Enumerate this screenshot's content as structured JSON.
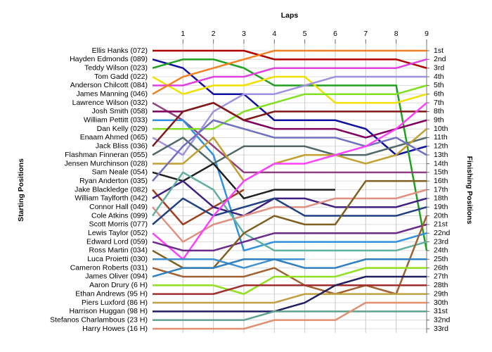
{
  "chart_data": {
    "type": "line",
    "title": "Laps",
    "y_label": "Starting Positions",
    "y2_label": "Finishing Positions",
    "x": [
      0,
      1,
      2,
      3,
      4,
      5,
      6,
      7,
      8,
      9
    ],
    "xlim": [
      0,
      9
    ],
    "xticks": [
      1,
      2,
      3,
      4,
      5,
      6,
      7,
      8,
      9
    ],
    "ylim": [
      1,
      33
    ],
    "y2lim": [
      1,
      33
    ],
    "y2ticks": [
      {
        "value": 1,
        "label": "1st"
      },
      {
        "value": 2,
        "label": "2nd"
      },
      {
        "value": 3,
        "label": "3rd"
      },
      {
        "value": 4,
        "label": "4th"
      },
      {
        "value": 5,
        "label": "5th"
      },
      {
        "value": 6,
        "label": "6th"
      },
      {
        "value": 7,
        "label": "7th"
      },
      {
        "value": 8,
        "label": "8th"
      },
      {
        "value": 9,
        "label": "9th"
      },
      {
        "value": 10,
        "label": "10th"
      },
      {
        "value": 11,
        "label": "11th"
      },
      {
        "value": 12,
        "label": "12th"
      },
      {
        "value": 13,
        "label": "13th"
      },
      {
        "value": 14,
        "label": "14th"
      },
      {
        "value": 15,
        "label": "15th"
      },
      {
        "value": 16,
        "label": "16th"
      },
      {
        "value": 17,
        "label": "17th"
      },
      {
        "value": 18,
        "label": "18th"
      },
      {
        "value": 19,
        "label": "19th"
      },
      {
        "value": 20,
        "label": "20th"
      },
      {
        "value": 21,
        "label": "21st"
      },
      {
        "value": 22,
        "label": "22nd"
      },
      {
        "value": 23,
        "label": "23rd"
      },
      {
        "value": 24,
        "label": "24th"
      },
      {
        "value": 25,
        "label": "25th"
      },
      {
        "value": 26,
        "label": "26th"
      },
      {
        "value": 27,
        "label": "27th"
      },
      {
        "value": 28,
        "label": "28th"
      },
      {
        "value": 29,
        "label": "29th"
      },
      {
        "value": 30,
        "label": "30th"
      },
      {
        "value": 31,
        "label": "31st"
      },
      {
        "value": 32,
        "label": "32nd"
      },
      {
        "value": 33,
        "label": "33rd"
      }
    ],
    "inverted": true,
    "grid": true,
    "series": [
      {
        "name": "Ellis Hanks (072)",
        "color": "#b00000",
        "values": [
          1,
          1,
          1,
          1,
          2,
          2,
          2,
          2,
          2,
          3
        ]
      },
      {
        "name": "Hayden Edmonds (089)",
        "color": "#1010a0",
        "values": [
          2,
          3,
          6,
          6,
          9,
          9,
          9,
          10,
          13,
          12
        ]
      },
      {
        "name": "Teddy Wilson (023)",
        "color": "#20a020",
        "values": [
          3,
          2,
          2,
          3,
          5,
          5,
          5,
          5,
          5,
          24
        ]
      },
      {
        "name": "Tom Gadd (022)",
        "color": "#f0e000",
        "values": [
          4,
          6,
          5,
          5,
          4,
          4,
          7,
          7,
          7,
          6
        ]
      },
      {
        "name": "Anderson Chilcott (084)",
        "color": "#e040e0",
        "values": [
          5,
          5,
          4,
          4,
          3,
          3,
          3,
          3,
          3,
          2
        ]
      },
      {
        "name": "James Manning (046)",
        "color": "#f08020",
        "values": [
          6,
          4,
          3,
          2,
          1,
          1,
          1,
          1,
          1,
          1
        ]
      },
      {
        "name": "Lawrence Wilson (032)",
        "color": "#904080",
        "values": [
          7,
          9,
          12,
          15,
          15,
          15,
          15,
          15,
          15,
          15
        ]
      },
      {
        "name": "Josh Smith (058)",
        "color": "#800060",
        "values": [
          8,
          8,
          7,
          9,
          10,
          10,
          10,
          11,
          10,
          9
        ]
      },
      {
        "name": "William Pettitt (033)",
        "color": "#3090e0",
        "values": [
          9,
          9,
          13,
          24,
          23,
          23,
          23,
          23,
          23,
          22
        ]
      },
      {
        "name": "Dan Kelly (029)",
        "color": "#80e020",
        "values": [
          10,
          10,
          10,
          8,
          7,
          6,
          6,
          6,
          6,
          5
        ]
      },
      {
        "name": "Enaam Ahmed (065)",
        "color": "#a090e0",
        "values": [
          11,
          13,
          8,
          6,
          6,
          5,
          4,
          4,
          4,
          4
        ]
      },
      {
        "name": "Jack Bliss (036)",
        "color": "#801818",
        "values": [
          12,
          8,
          7,
          9,
          8,
          8,
          8,
          8,
          8,
          8
        ]
      },
      {
        "name": "Flashman Finneran (055)",
        "color": "#506868",
        "values": [
          13,
          11,
          14,
          12,
          12,
          12,
          13,
          13,
          12,
          11
        ]
      },
      {
        "name": "Jensen Murchinson (028)",
        "color": "#c0a030",
        "values": [
          14,
          14,
          11,
          16,
          14,
          13,
          13,
          14,
          13,
          10
        ]
      },
      {
        "name": "Sam Neale (054)",
        "color": "#202020",
        "values": [
          15,
          16,
          14,
          18,
          17,
          17,
          17,
          null,
          null,
          null
        ]
      },
      {
        "name": "Ryan Anderton (035)",
        "color": "#7070c0",
        "values": [
          16,
          12,
          9,
          10,
          11,
          11,
          11,
          12,
          11,
          13
        ]
      },
      {
        "name": "Jake Blackledge (082)",
        "color": "#a04020",
        "values": [
          17,
          21,
          19,
          17,
          null,
          null,
          null,
          null,
          null,
          null
        ]
      },
      {
        "name": "William Taylforth (042)",
        "color": "#402080",
        "values": [
          18,
          16,
          19,
          20,
          18,
          18,
          19,
          19,
          19,
          18
        ]
      },
      {
        "name": "Connor Hall (049)",
        "color": "#e09080",
        "values": [
          19,
          23,
          21,
          20,
          19,
          19,
          18,
          18,
          18,
          17
        ]
      },
      {
        "name": "Cole Atkins (099)",
        "color": "#60b0a0",
        "values": [
          20,
          15,
          17,
          22,
          24,
          24,
          24,
          24,
          24,
          23
        ]
      },
      {
        "name": "Scott Morris (077)",
        "color": "#204080",
        "values": [
          21,
          18,
          20,
          19,
          18,
          20,
          20,
          20,
          20,
          19
        ]
      },
      {
        "name": "Lewis Taylor (052)",
        "color": "#ff40ff",
        "values": [
          22,
          25,
          20,
          16,
          14,
          14,
          13,
          12,
          10,
          7
        ]
      },
      {
        "name": "Edward Lord (059)",
        "color": "#6a2a8a",
        "values": [
          23,
          24,
          24,
          23,
          22,
          22,
          22,
          22,
          22,
          21
        ]
      },
      {
        "name": "Ross Martin (034)",
        "color": "#806020",
        "values": [
          24,
          26,
          26,
          22,
          20,
          21,
          21,
          16,
          16,
          16
        ]
      },
      {
        "name": "Luca Proietti (030)",
        "color": "#4090d0",
        "values": [
          25,
          25,
          25,
          26,
          25,
          25,
          null,
          null,
          null,
          null
        ]
      },
      {
        "name": "Cameron Roberts (031)",
        "color": "#a06030",
        "values": [
          26,
          27,
          27,
          27,
          26,
          28,
          29,
          28,
          29,
          20
        ]
      },
      {
        "name": "James Oliver (094)",
        "color": "#3080c0",
        "values": [
          27,
          26,
          26,
          25,
          25,
          26,
          26,
          25,
          25,
          25
        ]
      },
      {
        "name": "Aaron Drury (6 H)",
        "color": "#90e020",
        "values": [
          28,
          28,
          28,
          29,
          27,
          27,
          27,
          26,
          26,
          26
        ]
      },
      {
        "name": "Ethan Andrews (95 H)",
        "color": "#a03030",
        "values": [
          29,
          29,
          29,
          28,
          28,
          28,
          28,
          28,
          28,
          28
        ]
      },
      {
        "name": "Piers Luxford (86 H)",
        "color": "#c0a040",
        "values": [
          30,
          30,
          30,
          30,
          30,
          29,
          29,
          29,
          29,
          29
        ]
      },
      {
        "name": "Harrison Huggan (98 H)",
        "color": "#202060",
        "values": [
          31,
          31,
          31,
          31,
          31,
          30,
          28,
          27,
          27,
          27
        ]
      },
      {
        "name": "Stefanos Charlambous (23 H)",
        "color": "#60a090",
        "values": [
          32,
          32,
          32,
          32,
          31,
          31,
          31,
          31,
          31,
          31
        ]
      },
      {
        "name": "Harry Howes (16 H)",
        "color": "#e09070",
        "values": [
          33,
          33,
          33,
          33,
          32,
          32,
          32,
          30,
          30,
          30
        ]
      }
    ]
  }
}
